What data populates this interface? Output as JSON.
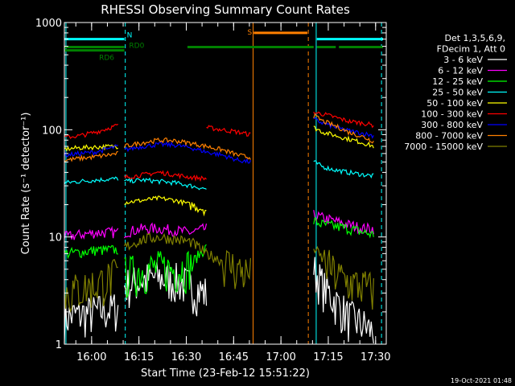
{
  "chart_data": {
    "type": "line",
    "title": "RHESSI Observing Summary Count Rates",
    "xlabel": "Start Time (23-Feb-12 15:51:22)",
    "ylabel": "Count Rate (s⁻¹ detector⁻¹)",
    "x_tick_labels": [
      "16:00",
      "16:15",
      "16:30",
      "16:45",
      "17:00",
      "17:15",
      "17:30"
    ],
    "x_tick_minutes": [
      8.63,
      23.63,
      38.63,
      53.63,
      68.63,
      83.63,
      98.63
    ],
    "xlim_minutes": [
      0,
      102
    ],
    "y_scale": "log",
    "ylim": [
      1,
      1000
    ],
    "y_tick_labels": [
      "1",
      "10",
      "100",
      "1000"
    ],
    "y_tick_values": [
      1,
      10,
      100,
      1000
    ],
    "legend_header": [
      "Det 1,3,5,6,9,",
      "FDecim 1, Att 0"
    ],
    "legend_position": "right",
    "series": [
      {
        "name": "3 - 6 keV",
        "color": "#ffffff",
        "segments": [
          {
            "x": [
              0,
              5,
              10,
              17
            ],
            "y": [
              1.8,
              1.9,
              2.0,
              2.2
            ]
          },
          {
            "x": [
              19,
              25,
              30,
              35,
              40,
              45
            ],
            "y": [
              3.5,
              4.0,
              4.2,
              4.0,
              3.5,
              3.0
            ]
          },
          {
            "x": [
              79,
              82,
              86,
              90,
              95,
              98
            ],
            "y": [
              5.0,
              3.5,
              2.5,
              1.8,
              1.5,
              1.3
            ]
          }
        ]
      },
      {
        "name": "6 - 12 keV",
        "color": "#ff00ff",
        "segments": [
          {
            "x": [
              0,
              5,
              10,
              17
            ],
            "y": [
              10,
              10.5,
              11,
              11
            ]
          },
          {
            "x": [
              19,
              25,
              30,
              35,
              40,
              45
            ],
            "y": [
              11,
              12,
              12,
              11.5,
              11,
              12
            ]
          },
          {
            "x": [
              79,
              82,
              86,
              90,
              95,
              98
            ],
            "y": [
              16,
              15,
              14,
              13,
              12,
              12
            ]
          }
        ]
      },
      {
        "name": "12 - 25 keV",
        "color": "#00ff00",
        "segments": [
          {
            "x": [
              0,
              5,
              10,
              17
            ],
            "y": [
              7,
              7.2,
              7.5,
              7.6
            ]
          },
          {
            "x": [
              19,
              25,
              30,
              35,
              40,
              45
            ],
            "y": [
              4.5,
              5,
              5.2,
              5,
              5.5,
              8
            ]
          },
          {
            "x": [
              79,
              82,
              86,
              90,
              95,
              98
            ],
            "y": [
              14,
              13,
              12.5,
              12,
              11,
              10.5
            ]
          }
        ]
      },
      {
        "name": "25 - 50 keV",
        "color": "#00ffff",
        "segments": [
          {
            "x": [
              0,
              5,
              10,
              17
            ],
            "y": [
              32,
              33,
              34,
              35
            ]
          },
          {
            "x": [
              19,
              25,
              30,
              35,
              40,
              45
            ],
            "y": [
              33,
              34,
              33,
              32,
              30,
              28
            ]
          },
          {
            "x": [
              79,
              82,
              86,
              90,
              95,
              98
            ],
            "y": [
              50,
              45,
              42,
              40,
              38,
              37
            ]
          }
        ]
      },
      {
        "name": "50 - 100 keV",
        "color": "#ffff00",
        "segments": [
          {
            "x": [
              0,
              5,
              10,
              17
            ],
            "y": [
              66,
              68,
              69,
              70
            ]
          },
          {
            "x": [
              19,
              25,
              30,
              35,
              40,
              45
            ],
            "y": [
              21,
              22,
              23,
              22,
              20,
              18
            ]
          },
          {
            "x": [
              79,
              82,
              86,
              90,
              95,
              98
            ],
            "y": [
              105,
              95,
              88,
              82,
              75,
              70
            ]
          }
        ]
      },
      {
        "name": "100 - 300 keV",
        "color": "#ff0000",
        "segments": [
          {
            "x": [
              0,
              5,
              10,
              17
            ],
            "y": [
              85,
              88,
              95,
              110
            ]
          },
          {
            "x": [
              19,
              25,
              30,
              35,
              40,
              45
            ],
            "y": [
              36,
              38,
              40,
              38,
              36,
              35
            ]
          },
          {
            "x": [
              45,
              50,
              55,
              59
            ],
            "y": [
              105,
              100,
              95,
              90
            ]
          },
          {
            "x": [
              79,
              82,
              86,
              90,
              95,
              98
            ],
            "y": [
              145,
              140,
              130,
              120,
              115,
              110
            ]
          }
        ]
      },
      {
        "name": "300 - 800 keV",
        "color": "#0000ff",
        "segments": [
          {
            "x": [
              0,
              5,
              10,
              17
            ],
            "y": [
              58,
              60,
              62,
              70
            ]
          },
          {
            "x": [
              19,
              25,
              30,
              35,
              40,
              45
            ],
            "y": [
              65,
              70,
              73,
              72,
              68,
              62
            ]
          },
          {
            "x": [
              45,
              50,
              55,
              59
            ],
            "y": [
              62,
              58,
              52,
              50
            ]
          },
          {
            "x": [
              79,
              82,
              86,
              90,
              95,
              98
            ],
            "y": [
              125,
              115,
              105,
              98,
              92,
              88
            ]
          }
        ]
      },
      {
        "name": "800 - 7000 keV",
        "color": "#ff8000",
        "segments": [
          {
            "x": [
              0,
              5,
              10,
              17
            ],
            "y": [
              52,
              54,
              56,
              60
            ]
          },
          {
            "x": [
              19,
              25,
              30,
              35,
              40,
              45
            ],
            "y": [
              70,
              76,
              80,
              79,
              75,
              70
            ]
          },
          {
            "x": [
              45,
              50,
              55,
              59
            ],
            "y": [
              70,
              65,
              58,
              55
            ]
          },
          {
            "x": [
              79,
              82,
              86,
              90,
              95,
              98
            ],
            "y": [
              135,
              120,
              108,
              95,
              85,
              78
            ]
          }
        ]
      },
      {
        "name": "7000 - 15000 keV",
        "color": "#808000",
        "segments": [
          {
            "x": [
              0,
              5,
              10,
              17
            ],
            "y": [
              3.0,
              3.3,
              3.6,
              4.5
            ]
          },
          {
            "x": [
              19,
              25,
              30,
              35,
              40,
              45
            ],
            "y": [
              8,
              9.5,
              10,
              9.5,
              9,
              7
            ]
          },
          {
            "x": [
              45,
              50,
              55,
              59
            ],
            "y": [
              7,
              6,
              5,
              4.5
            ]
          },
          {
            "x": [
              79,
              82,
              86,
              90,
              95,
              98
            ],
            "y": [
              8,
              6,
              4.5,
              3.8,
              3.5,
              3.2
            ]
          }
        ]
      }
    ],
    "state_bars": [
      {
        "label": "N",
        "color": "#00ffff",
        "level": 700,
        "ranges": [
          [
            0,
            19
          ],
          [
            80,
            101
          ]
        ]
      },
      {
        "label": "RD0",
        "color": "#008000",
        "level": 590,
        "ranges": [
          [
            0,
            19
          ],
          [
            39,
            79
          ],
          [
            80,
            86
          ],
          [
            87,
            101
          ]
        ]
      },
      {
        "label": "RD6",
        "color": "#008000",
        "level": 550,
        "ranges": [
          [
            0,
            19
          ]
        ]
      },
      {
        "label": "S",
        "color": "#ff8000",
        "level": 800,
        "ranges": [
          [
            60,
            77
          ]
        ]
      }
    ],
    "vertical_lines": [
      {
        "x": 0.5,
        "color": "#00ffff",
        "style": "solid"
      },
      {
        "x": 19.3,
        "color": "#00ffff",
        "style": "dashed"
      },
      {
        "x": 59.8,
        "color": "#ff8000",
        "style": "solid"
      },
      {
        "x": 77.3,
        "color": "#ff8000",
        "style": "dashed"
      },
      {
        "x": 79.8,
        "color": "#00ffff",
        "style": "solid"
      },
      {
        "x": 100.5,
        "color": "#00ffff",
        "style": "dashed"
      }
    ],
    "timestamp": "19-Oct-2021 01:48"
  }
}
